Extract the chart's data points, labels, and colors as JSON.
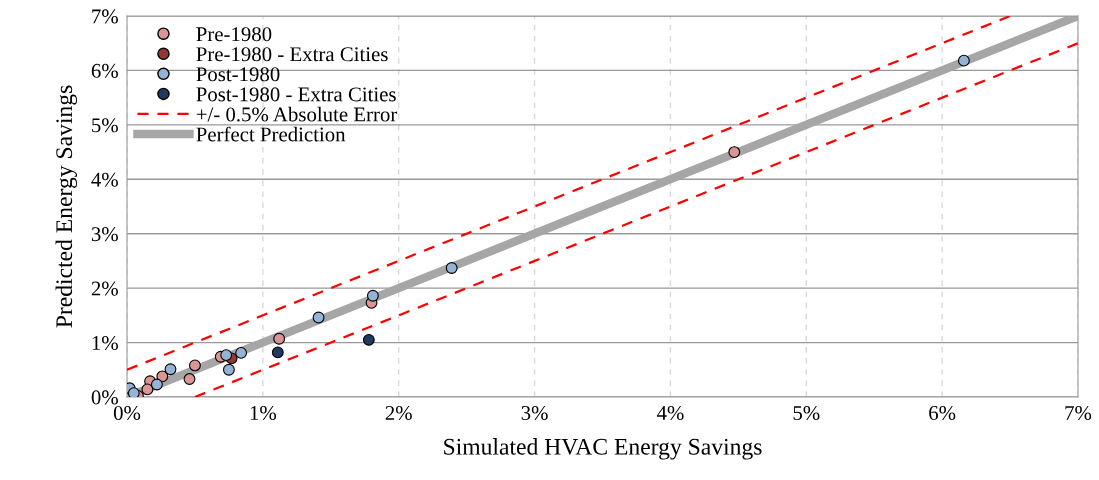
{
  "chart_data": {
    "type": "scatter",
    "xlabel": "Simulated HVAC Energy Savings",
    "ylabel": "Predicted Energy Savings",
    "xlim": [
      0,
      7
    ],
    "ylim": [
      0,
      7
    ],
    "xticks": [
      {
        "value": 0,
        "label": "0%"
      },
      {
        "value": 1,
        "label": "1%"
      },
      {
        "value": 2,
        "label": "2%"
      },
      {
        "value": 3,
        "label": "3%"
      },
      {
        "value": 4,
        "label": "4%"
      },
      {
        "value": 5,
        "label": "5%"
      },
      {
        "value": 6,
        "label": "6%"
      },
      {
        "value": 7,
        "label": "7%"
      }
    ],
    "yticks": [
      {
        "value": 0,
        "label": "0%"
      },
      {
        "value": 1,
        "label": "1%"
      },
      {
        "value": 2,
        "label": "2%"
      },
      {
        "value": 3,
        "label": "3%"
      },
      {
        "value": 4,
        "label": "4%"
      },
      {
        "value": 5,
        "label": "5%"
      },
      {
        "value": 6,
        "label": "6%"
      },
      {
        "value": 7,
        "label": "7%"
      }
    ],
    "grid": true,
    "legend": "top left",
    "marker": "circle",
    "series": [
      {
        "name": "Pre-1980",
        "color": "#d99694",
        "x": [
          1.8,
          1.12,
          0.5,
          0.46,
          0.26,
          0.17,
          0.15,
          0.08,
          0.69,
          4.47
        ],
        "values": [
          1.73,
          1.07,
          0.58,
          0.33,
          0.38,
          0.29,
          0.14,
          0.02,
          0.74,
          4.5
        ]
      },
      {
        "name": "Pre-1980 - Extra Cities",
        "color": "#953735",
        "x": [
          0.77
        ],
        "values": [
          0.71
        ]
      },
      {
        "name": "Post-1980",
        "color": "#95b3d7",
        "x": [
          0.02,
          0.05,
          0.22,
          0.32,
          0.73,
          0.84,
          0.75,
          1.41,
          1.81,
          2.39,
          6.16
        ],
        "values": [
          0.16,
          0.07,
          0.23,
          0.51,
          0.77,
          0.81,
          0.5,
          1.46,
          1.86,
          2.37,
          6.18
        ]
      },
      {
        "name": "Post-1980 - Extra Cities",
        "color": "#1f3a5f",
        "x": [
          1.11,
          1.78
        ],
        "values": [
          0.82,
          1.05
        ]
      },
      {
        "name": "+/- 0.5% Absolute Error",
        "type": "line",
        "marker": "none",
        "color": "#ff0000",
        "line_style": "dashed",
        "x": [
          0,
          6.5
        ],
        "values": [
          0.5,
          7
        ]
      },
      {
        "type": "line",
        "marker": "none",
        "color": "#ff0000",
        "line_style": "dashed",
        "x": [
          0.5,
          7
        ],
        "values": [
          0,
          6.5
        ]
      },
      {
        "name": "Perfect Prediction",
        "type": "line",
        "marker": "none",
        "color": "#a6a6a6",
        "line_style": "solid",
        "x": [
          0,
          7
        ],
        "values": [
          0,
          7
        ]
      }
    ]
  }
}
